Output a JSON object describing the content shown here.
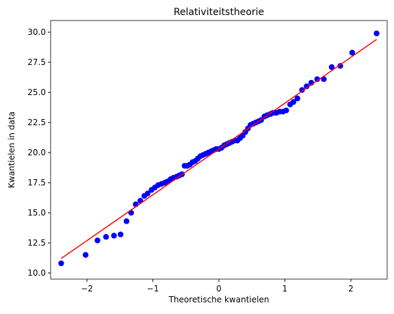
{
  "chart_data": {
    "type": "scatter",
    "title": "Relativiteitstheorie",
    "x_label": "Theoretische kwantielen",
    "y_label": "Kwantielen in data",
    "color": "#0000ff",
    "x": [
      -2.39,
      -2.02,
      -1.84,
      -1.71,
      -1.59,
      -1.49,
      -1.4,
      -1.33,
      -1.26,
      -1.19,
      -1.13,
      -1.08,
      -1.02,
      -0.97,
      -0.92,
      -0.87,
      -0.82,
      -0.78,
      -0.73,
      -0.69,
      -0.64,
      -0.6,
      -0.56,
      -0.52,
      -0.48,
      -0.44,
      -0.4,
      -0.36,
      -0.32,
      -0.28,
      -0.24,
      -0.2,
      -0.16,
      -0.12,
      -0.08,
      -0.04,
      0,
      0.04,
      0.08,
      0.12,
      0.16,
      0.2,
      0.24,
      0.28,
      0.32,
      0.36,
      0.4,
      0.44,
      0.48,
      0.52,
      0.56,
      0.6,
      0.64,
      0.69,
      0.73,
      0.78,
      0.82,
      0.87,
      0.92,
      0.97,
      1.02,
      1.08,
      1.13,
      1.19,
      1.26,
      1.33,
      1.4,
      1.49,
      1.59,
      1.71,
      1.84,
      2.02,
      2.39
    ],
    "values": [
      10.8,
      11.5,
      12.7,
      13.0,
      13.1,
      13.2,
      14.3,
      15.0,
      15.7,
      16.0,
      16.4,
      16.6,
      16.9,
      17.1,
      17.3,
      17.4,
      17.5,
      17.6,
      17.8,
      17.9,
      18.0,
      18.1,
      18.2,
      18.9,
      18.9,
      19.0,
      19.2,
      19.3,
      19.5,
      19.7,
      19.8,
      19.9,
      20.0,
      20.1,
      20.2,
      20.3,
      20.3,
      20.4,
      20.6,
      20.7,
      20.8,
      20.9,
      21.0,
      21.0,
      21.2,
      21.4,
      21.7,
      22.0,
      22.3,
      22.4,
      22.5,
      22.6,
      22.7,
      23.0,
      23.1,
      23.2,
      23.3,
      23.3,
      23.4,
      23.4,
      23.5,
      24.0,
      24.2,
      24.5,
      25.2,
      25.5,
      25.8,
      26.1,
      26.1,
      27.1,
      27.2,
      28.3,
      29.9
    ],
    "line": {
      "x": [
        -2.39,
        2.39
      ],
      "values": [
        11.2,
        29.4
      ],
      "color": "#ff0000"
    },
    "xlim": [
      -2.55,
      2.55
    ],
    "xticks": [
      {
        "value": -2,
        "label": "−2"
      },
      {
        "value": -1,
        "label": "−1"
      },
      0,
      1,
      2
    ],
    "ylim": [
      9.49,
      30.97
    ],
    "yticks": [
      {
        "value": 10,
        "label": "10.0"
      },
      12.5,
      {
        "value": 15,
        "label": "15.0"
      },
      17.5,
      {
        "value": 20,
        "label": "20.0"
      },
      22.5,
      {
        "value": 25,
        "label": "25.0"
      },
      27.5,
      {
        "value": 30,
        "label": "30.0"
      }
    ]
  }
}
